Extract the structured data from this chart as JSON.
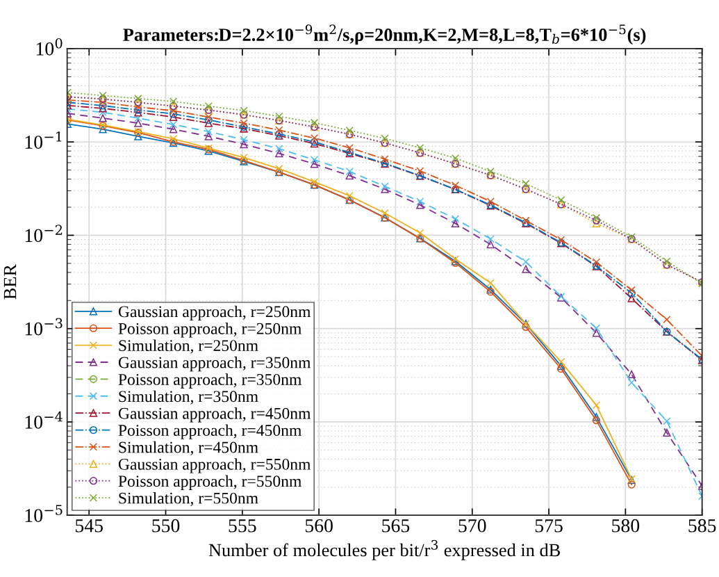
{
  "chart_data": {
    "type": "line",
    "title": "Parameters:D=2.2×10$^{−9}$m$^{2}$/s,ρ=20nm,K=2,M=8,L=8,T$_{b}$=6*10$^{−5}$(s)",
    "xlabel": "Number of molecules per bit/r$^{3}$ expressed in dB",
    "ylabel": "BER",
    "x": [
      543.6,
      545.9,
      548.2,
      550.5,
      552.8,
      555.1,
      557.4,
      559.7,
      562.0,
      564.3,
      566.6,
      568.9,
      571.2,
      573.5,
      575.8,
      578.1,
      580.4,
      582.7,
      585.0
    ],
    "series": [
      {
        "name": "Gaussian approach, r=250nm",
        "color": "#0072bd",
        "marker": "triangle",
        "line_style": "solid",
        "values": [
          0.156,
          0.137,
          0.115,
          0.0977,
          0.08,
          0.0619,
          0.0475,
          0.0347,
          0.0239,
          0.0155,
          0.00927,
          0.00527,
          0.00262,
          0.00113,
          0.000397,
          0.000113,
          2.39e-05,
          null,
          null
        ]
      },
      {
        "name": "Poisson approach, r=250nm",
        "color": "#d95319",
        "marker": "circle",
        "line_style": "solid",
        "values": [
          0.172,
          0.149,
          0.126,
          0.1,
          0.0832,
          0.0633,
          0.0475,
          0.0347,
          0.0239,
          0.0154,
          0.00923,
          0.00506,
          0.00248,
          0.00104,
          0.000371,
          0.000104,
          2.13e-05,
          null,
          null
        ]
      },
      {
        "name": "Simulation, r=250nm",
        "color": "#edb120",
        "marker": "cross",
        "line_style": "solid",
        "values": [
          0.175,
          0.152,
          0.129,
          0.108,
          0.0857,
          0.0681,
          0.0518,
          0.0374,
          0.0265,
          0.0173,
          0.0106,
          0.00557,
          0.00308,
          0.00113,
          0.000441,
          0.000151,
          2.45e-05,
          null,
          null
        ]
      },
      {
        "name": "Gaussian approach, r=350nm",
        "color": "#7e2f8e",
        "marker": "triangle",
        "line_style": "dashed",
        "values": [
          0.202,
          0.18,
          0.159,
          0.137,
          0.115,
          0.0944,
          0.0755,
          0.0581,
          0.0436,
          0.0312,
          0.0211,
          0.0134,
          0.00798,
          0.00434,
          0.00215,
          0.000901,
          0.000324,
          7.67e-05,
          2.06e-05
        ]
      },
      {
        "name": "Poisson approach, r=350nm",
        "color": "#77ac30",
        "marker": "circle",
        "line_style": "dashed",
        "values": [
          null,
          null,
          null,
          null,
          null,
          null,
          null,
          null,
          null,
          null,
          null,
          null,
          null,
          null,
          null,
          null,
          null,
          null,
          null
        ]
      },
      {
        "name": "Simulation, r=350nm",
        "color": "#4dbeee",
        "marker": "cross",
        "line_style": "dashed",
        "values": [
          0.226,
          0.208,
          0.18,
          0.154,
          0.129,
          0.106,
          0.0847,
          0.0644,
          0.0483,
          0.0334,
          0.023,
          0.015,
          0.00912,
          0.0052,
          0.00221,
          0.00101,
          0.000264,
          0.000102,
          1.6e-05
        ]
      },
      {
        "name": "Gaussian approach, r=450nm",
        "color": "#a2142f",
        "marker": "triangle",
        "line_style": "dashdot",
        "values": [
          0.246,
          0.229,
          0.207,
          0.185,
          0.159,
          0.139,
          0.117,
          0.096,
          0.0755,
          0.0584,
          0.0432,
          0.031,
          0.0208,
          0.0134,
          0.00822,
          0.00465,
          0.00211,
          0.000928,
          0.000459
        ]
      },
      {
        "name": "Poisson approach, r=450nm",
        "color": "#0072bd",
        "marker": "circle",
        "line_style": "dashdot",
        "values": [
          0.266,
          0.245,
          0.22,
          0.2,
          0.172,
          0.145,
          0.122,
          0.1,
          0.0773,
          0.0591,
          0.0436,
          0.031,
          0.0211,
          0.0136,
          0.00832,
          0.0047,
          0.0024,
          0.000928,
          0.000467
        ]
      },
      {
        "name": "Simulation, r=450nm",
        "color": "#d95319",
        "marker": "cross",
        "line_style": "dashdot",
        "values": [
          0.281,
          0.266,
          0.237,
          0.216,
          0.185,
          0.159,
          0.134,
          0.11,
          0.0866,
          0.0655,
          0.0489,
          0.0343,
          0.023,
          0.0144,
          0.00896,
          0.00515,
          0.00259,
          0.00125,
          0.000509
        ]
      },
      {
        "name": "Gaussian approach, r=550nm",
        "color": "#edb120",
        "marker": "triangle",
        "line_style": "dotted",
        "values": [
          0.305,
          0.288,
          0.266,
          0.242,
          0.22,
          0.196,
          0.17,
          0.145,
          0.121,
          0.0977,
          0.0764,
          0.0584,
          0.044,
          0.0312,
          0.0215,
          0.0134,
          0.00912,
          0.00483,
          0.00315
        ]
      },
      {
        "name": "Poisson approach, r=550nm",
        "color": "#7e2f8e",
        "marker": "circle",
        "line_style": "dotted",
        "values": [
          0.305,
          0.288,
          0.266,
          0.242,
          0.22,
          0.196,
          0.17,
          0.145,
          0.121,
          0.0977,
          0.0764,
          0.0584,
          0.044,
          0.0312,
          0.0215,
          0.0144,
          0.00912,
          0.00483,
          0.00315
        ]
      },
      {
        "name": "Simulation, r=550nm",
        "color": "#77ac30",
        "marker": "cross",
        "line_style": "dotted",
        "values": [
          0.338,
          0.315,
          0.292,
          0.272,
          0.242,
          0.217,
          0.188,
          0.161,
          0.133,
          0.109,
          0.0866,
          0.067,
          0.0483,
          0.0357,
          0.0239,
          0.0154,
          0.00959,
          0.00527,
          0.00303
        ]
      }
    ],
    "log": "y",
    "xlim": [
      543.57,
      585
    ],
    "xticks": [
      545,
      550,
      555,
      560,
      565,
      570,
      575,
      580,
      585
    ],
    "ylim": [
      1e-05,
      1
    ],
    "yticks": [
      {
        "value": 1e-05,
        "label": "10$^{−5}$"
      },
      {
        "value": 0.0001,
        "label": "10$^{−4}$"
      },
      {
        "value": 0.001,
        "label": "10$^{−3}$"
      },
      {
        "value": 0.01,
        "label": "10$^{−2}$"
      },
      {
        "value": 0.1,
        "label": "10$^{−1}$"
      },
      {
        "value": 1,
        "label": "10$^{0}$"
      }
    ],
    "grid": true,
    "legend": "bottom left"
  }
}
